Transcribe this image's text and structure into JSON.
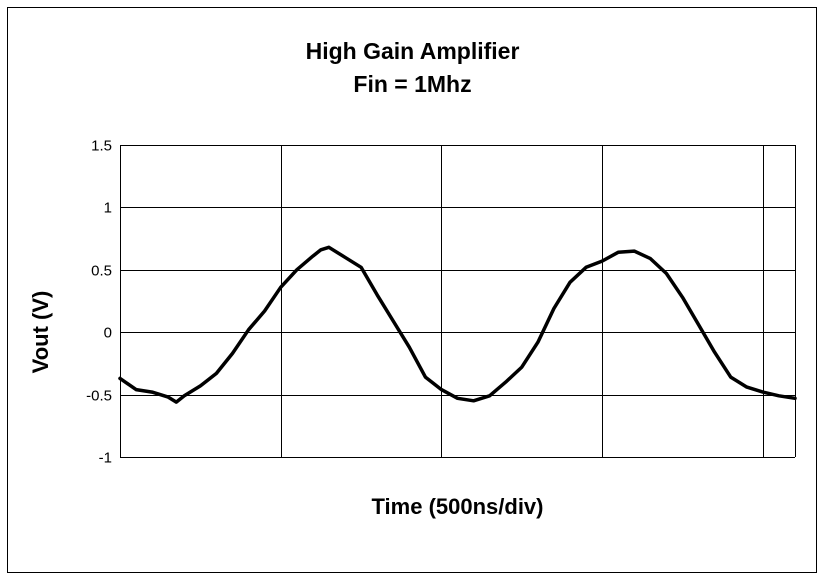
{
  "chart_data": {
    "type": "line",
    "title": [
      "High Gain Amplifier",
      "Fin = 1Mhz"
    ],
    "xlabel": "Time (500ns/div)",
    "ylabel": "Vout (V)",
    "yticks": [
      "1.5",
      "1",
      "0.5",
      "0",
      "-0.5",
      "-1"
    ],
    "ylim": [
      -1,
      1.5
    ],
    "xlim": [
      0,
      4.2
    ],
    "x_major_divisions": [
      0,
      1,
      2,
      3,
      4
    ],
    "grid": true,
    "legend": "none",
    "line_color": "#000000",
    "series": [
      {
        "x": [
          0.0,
          0.1,
          0.2,
          0.3,
          0.35,
          0.4,
          0.5,
          0.6,
          0.7,
          0.8,
          0.9,
          1.0,
          1.1,
          1.2,
          1.25,
          1.3,
          1.4,
          1.5,
          1.6,
          1.7,
          1.8,
          1.9,
          2.0,
          2.1,
          2.2,
          2.3,
          2.4,
          2.5,
          2.6,
          2.7,
          2.8,
          2.9,
          3.0,
          3.1,
          3.2,
          3.3,
          3.4,
          3.5,
          3.6,
          3.7,
          3.8,
          3.9,
          4.0,
          4.1,
          4.2
        ],
        "y": [
          -0.37,
          -0.46,
          -0.48,
          -0.52,
          -0.56,
          -0.51,
          -0.43,
          -0.33,
          -0.17,
          0.02,
          0.17,
          0.36,
          0.5,
          0.61,
          0.66,
          0.68,
          0.6,
          0.52,
          0.3,
          0.09,
          -0.12,
          -0.36,
          -0.46,
          -0.53,
          -0.55,
          -0.51,
          -0.4,
          -0.28,
          -0.08,
          0.19,
          0.4,
          0.52,
          0.57,
          0.64,
          0.65,
          0.59,
          0.47,
          0.28,
          0.06,
          -0.16,
          -0.36,
          -0.44,
          -0.48,
          -0.51,
          -0.53
        ]
      }
    ]
  }
}
